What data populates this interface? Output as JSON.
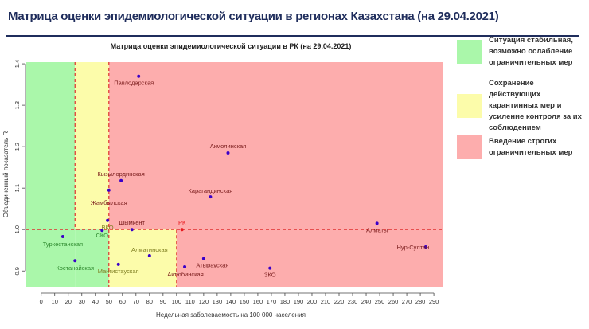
{
  "slide_title": "Матрица оценки эпидемиологической ситуации в регионах Казахстана (на 29.04.2021)",
  "legend": [
    {
      "label": "Ситуация стабильная, возможно ослабление ограничительных мер",
      "color": "#aaf7aa"
    },
    {
      "label": "Сохранение действующих карантинных мер и усиление контроля за их соблюдением",
      "color": "#fcfcaa"
    },
    {
      "label": "Введение строгих ограничительных мер",
      "color": "#fdadad"
    }
  ],
  "chart_data": {
    "type": "scatter",
    "title": "Матрица оценки эпидемиологической ситуации в РК (на 29.04.2021)",
    "xlabel": "Недельная заболеваемость на 100 000 населения",
    "ylabel": "Объединенный показатель R",
    "xlim": [
      -11,
      297
    ],
    "ylim": [
      0.862,
      1.404
    ],
    "x_ticks": [
      0,
      10,
      20,
      30,
      40,
      50,
      60,
      70,
      80,
      90,
      100,
      110,
      120,
      130,
      140,
      150,
      160,
      170,
      180,
      190,
      200,
      210,
      220,
      230,
      240,
      250,
      260,
      270,
      280,
      290
    ],
    "y_ticks": [
      0.9,
      1.0,
      1.1,
      1.2,
      1.3,
      1.4
    ],
    "y_tick_labels": [
      "0.9",
      "1.0",
      "1.1",
      "1.2",
      "1.3",
      "1.4"
    ],
    "thresholds": {
      "x": [
        25,
        50,
        100
      ],
      "y": 1.0
    },
    "zone_colors": {
      "green": "#aaf7aa",
      "yellow": "#fcfcaa",
      "red": "#fdadad"
    },
    "point_color": "#3a00c8",
    "reference_color": "#e8191e",
    "points": [
      {
        "label": "Павлодарская",
        "x": 72,
        "y": 1.37
      },
      {
        "label": "Акмолинская",
        "x": 138,
        "y": 1.185
      },
      {
        "label": "Кызылординская",
        "x": 59,
        "y": 1.118
      },
      {
        "label": "Жамбылская",
        "x": 50,
        "y": 1.095
      },
      {
        "label": "Карагандинская",
        "x": 125,
        "y": 1.079
      },
      {
        "label": "ВКО",
        "x": 49,
        "y": 1.022
      },
      {
        "label": "Шымкент",
        "x": 67,
        "y": 1.0
      },
      {
        "label": "РК",
        "x": 104,
        "y": 1.0,
        "reference": true
      },
      {
        "label": "СКО",
        "x": 45,
        "y": 0.998
      },
      {
        "label": "Туркестанская",
        "x": 16,
        "y": 0.983
      },
      {
        "label": "Костанайская",
        "x": 25,
        "y": 0.925
      },
      {
        "label": "Алматинская",
        "x": 80,
        "y": 0.937
      },
      {
        "label": "Мангистауская",
        "x": 57,
        "y": 0.916
      },
      {
        "label": "Атырауская",
        "x": 120,
        "y": 0.93
      },
      {
        "label": "Актюбинская",
        "x": 106,
        "y": 0.91
      },
      {
        "label": "ЗКО",
        "x": 169,
        "y": 0.907
      },
      {
        "label": "Алматы",
        "x": 248,
        "y": 1.015
      },
      {
        "label": "Нур-Султан",
        "x": 284,
        "y": 0.958
      }
    ]
  }
}
